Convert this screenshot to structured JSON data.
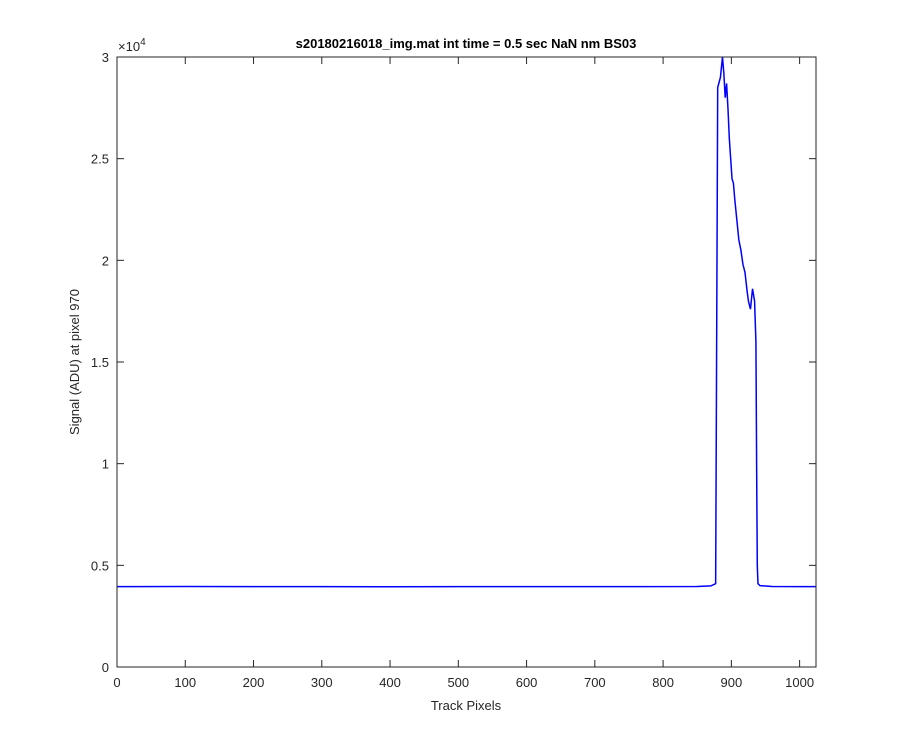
{
  "chart_data": {
    "type": "line",
    "title": "s20180216018_img.mat int time = 0.5 sec  NaN nm BS03",
    "x_label": "Track Pixels",
    "y_label": "Signal (ADU) at pixel 970",
    "y_scale_base": "×10",
    "y_scale_exponent": "4",
    "color": "#0000ff",
    "xlim": [
      0,
      1024
    ],
    "ylim": [
      0,
      30000
    ],
    "xticks": [
      0,
      100,
      200,
      300,
      400,
      500,
      600,
      700,
      800,
      900,
      1000
    ],
    "yticks": [
      0,
      {
        "value": 5000,
        "label": "0.5"
      },
      {
        "value": 10000,
        "label": "1"
      },
      {
        "value": 15000,
        "label": "1.5"
      },
      {
        "value": 20000,
        "label": "2"
      },
      {
        "value": 25000,
        "label": "2.5"
      },
      {
        "value": 30000,
        "label": "3"
      }
    ],
    "x": [
      0,
      100,
      200,
      300,
      400,
      500,
      600,
      700,
      850,
      870,
      877,
      880,
      884,
      887,
      889,
      891,
      893,
      895,
      897,
      899,
      901,
      903,
      905,
      908,
      911,
      914,
      917,
      920,
      923,
      925,
      928,
      931,
      934,
      936,
      937,
      938,
      939,
      942,
      960,
      1000,
      1024
    ],
    "values": [
      3950,
      3960,
      3950,
      3955,
      3945,
      3950,
      3955,
      3950,
      3960,
      3990,
      4100,
      28500,
      29000,
      30000,
      29200,
      28000,
      28700,
      27500,
      26000,
      25000,
      24000,
      23800,
      23000,
      22000,
      21000,
      20500,
      19800,
      19400,
      18500,
      18000,
      17600,
      18600,
      18000,
      16000,
      10000,
      5000,
      4100,
      4000,
      3960,
      3950,
      3950
    ]
  }
}
